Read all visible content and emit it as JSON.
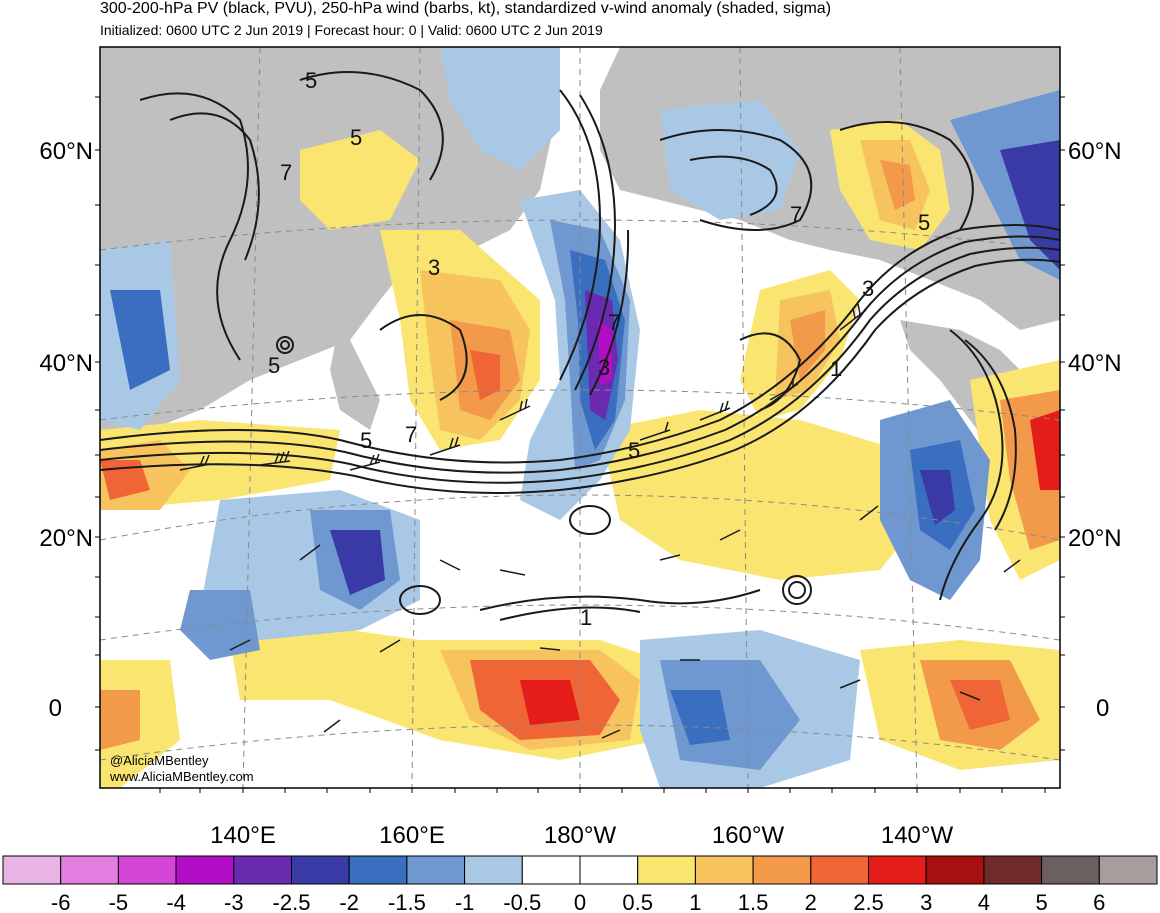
{
  "header": {
    "title": "300-200-hPa PV (black, PVU), 250-hPa wind (barbs, kt), standardized v-wind anomaly (shaded, sigma)",
    "subtitle": "Initialized: 0600 UTC 2 Jun 2019 | Forecast hour: 0 | Valid: 0600 UTC 2 Jun 2019"
  },
  "map": {
    "lat_labels_left": [
      "60°N",
      "40°N",
      "20°N",
      "0"
    ],
    "lat_labels_right": [
      "60°N",
      "40°N",
      "20°N",
      "0"
    ],
    "lon_labels": [
      "140°E",
      "160°E",
      "180°W",
      "160°W",
      "140°W"
    ],
    "contour_labels": [
      "5",
      "5",
      "7",
      "5",
      "3",
      "7",
      "3",
      "5",
      "7",
      "5",
      "3",
      "1",
      "7",
      "5",
      "1"
    ],
    "credit_line1": "@AliciaMBentley",
    "credit_line2": "www.AliciaMBentley.com",
    "land_color": "#c0c0c0",
    "ocean_color": "#ffffff"
  },
  "colorbar": {
    "colors": [
      "#e8b4e6",
      "#e27fe0",
      "#d447d6",
      "#b20ec6",
      "#6a2bb0",
      "#3a3aa6",
      "#3a6ec0",
      "#6f97d0",
      "#a9c8e6",
      "#ffffff",
      "#ffffff",
      "#fbe571",
      "#f6c35e",
      "#f2994a",
      "#ef6536",
      "#e51d1a",
      "#a80f0f",
      "#6f2b2a",
      "#6b5f5f",
      "#a89c9c"
    ],
    "labels": [
      "-6",
      "-5",
      "-4",
      "-3",
      "-2.5",
      "-2",
      "-1.5",
      "-1",
      "-0.5",
      "0",
      "0.5",
      "1",
      "1.5",
      "2",
      "2.5",
      "3",
      "4",
      "5",
      "6"
    ]
  }
}
